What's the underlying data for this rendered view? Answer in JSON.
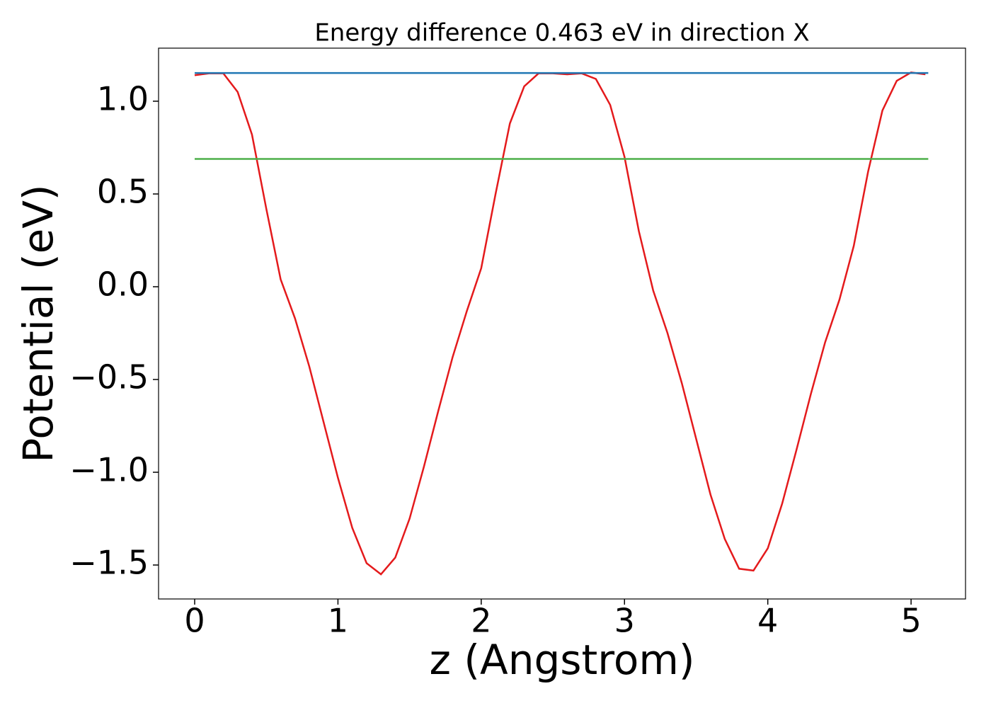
{
  "chart_data": {
    "type": "line",
    "title": "Energy difference 0.463 eV in direction X",
    "xlabel": "z (Angstrom)",
    "ylabel": "Potential (eV)",
    "series": [
      {
        "color": "#e41a1c",
        "x": [
          0,
          0.1,
          0.2,
          0.3,
          0.4,
          0.5,
          0.6,
          0.7,
          0.8,
          0.9,
          1.0,
          1.1,
          1.2,
          1.3,
          1.4,
          1.5,
          1.6,
          1.7,
          1.8,
          1.9,
          2.0,
          2.1,
          2.2,
          2.3,
          2.4,
          2.5,
          2.6,
          2.7,
          2.8,
          2.9,
          3.0,
          3.1,
          3.2,
          3.3,
          3.4,
          3.5,
          3.6,
          3.7,
          3.8,
          3.9,
          4.0,
          4.1,
          4.2,
          4.3,
          4.4,
          4.5,
          4.6,
          4.7,
          4.8,
          4.9,
          5.0,
          5.1
        ],
        "values": [
          1.14,
          1.15,
          1.15,
          1.05,
          0.82,
          0.42,
          0.04,
          -0.17,
          -0.43,
          -0.73,
          -1.03,
          -1.3,
          -1.49,
          -1.55,
          -1.46,
          -1.25,
          -0.97,
          -0.67,
          -0.38,
          -0.13,
          0.1,
          0.5,
          0.88,
          1.08,
          1.15,
          1.15,
          1.145,
          1.15,
          1.12,
          0.98,
          0.7,
          0.3,
          -0.02,
          -0.25,
          -0.52,
          -0.82,
          -1.12,
          -1.36,
          -1.52,
          -1.53,
          -1.41,
          -1.17,
          -0.88,
          -0.58,
          -0.3,
          -0.07,
          0.22,
          0.62,
          0.95,
          1.11,
          1.155,
          1.145
        ]
      },
      {
        "color": "#1f77b4",
        "x": [
          0,
          5.12
        ],
        "values": [
          1.152,
          1.152
        ]
      },
      {
        "color": "#4daf4a",
        "x": [
          0,
          5.12
        ],
        "values": [
          0.689,
          0.689
        ]
      }
    ],
    "xlim": [
      -0.252,
      5.38
    ],
    "ylim": [
      -1.683,
      1.286
    ],
    "xticks": [
      0,
      1,
      2,
      3,
      4,
      5
    ],
    "yticks": [
      {
        "value": -1.5,
        "label": "−1.5"
      },
      {
        "value": -1.0,
        "label": "−1.0"
      },
      {
        "value": -0.5,
        "label": "−0.5"
      },
      {
        "value": 0,
        "label": "0.0"
      },
      0.5,
      {
        "value": 1.0,
        "label": "1.0"
      }
    ],
    "grid": false
  }
}
